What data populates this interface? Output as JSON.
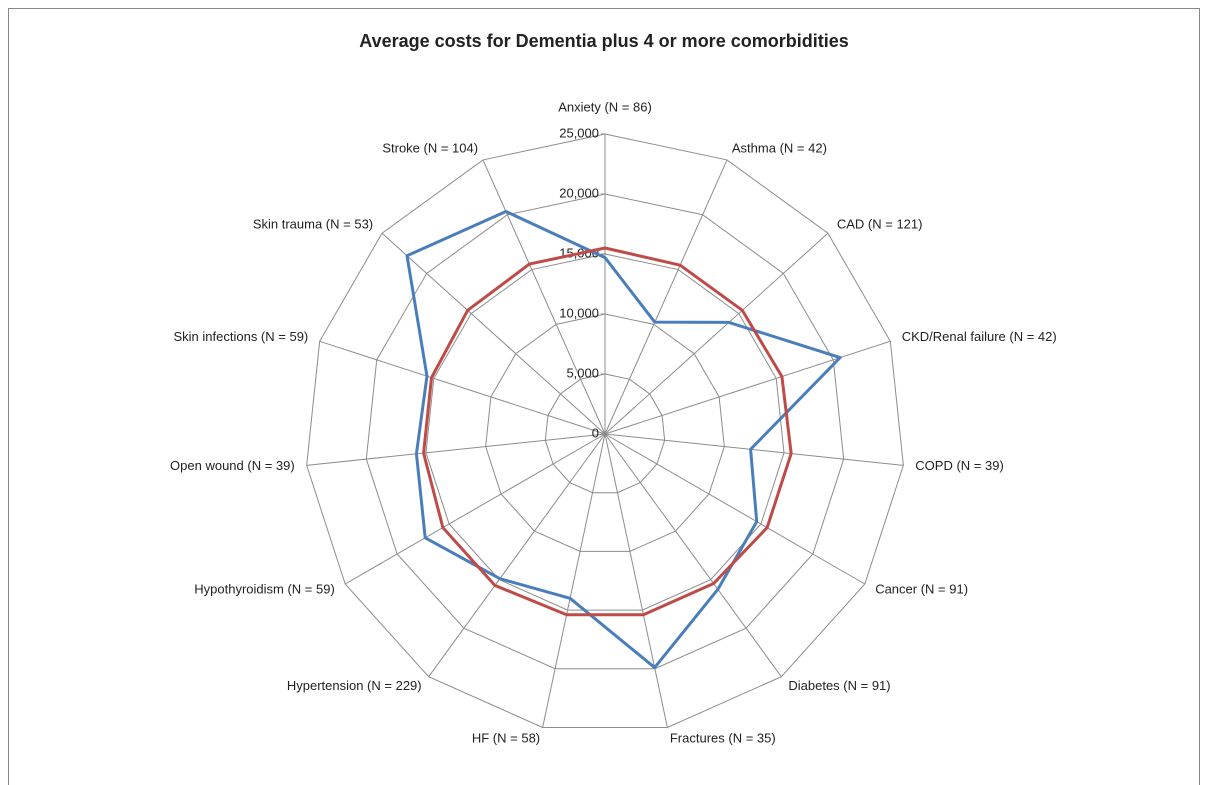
{
  "chart_data": {
    "type": "radar",
    "title": "Average costs for Dementia plus 4 or more comorbidities",
    "categories": [
      "Anxiety (N = 86)",
      "Asthma (N = 42)",
      "CAD (N = 121)",
      "CKD/Renal failure (N = 42)",
      "COPD (N = 39)",
      "Cancer (N = 91)",
      "Diabetes (N = 91)",
      "Fractures (N = 35)",
      "HF (N = 58)",
      "Hypertension (N = 229)",
      "Hypothyroidism (N = 59)",
      "Open wound (N = 39)",
      "Skin infections (N = 59)",
      "Skin trauma (N = 53)",
      "Stroke (N = 104)"
    ],
    "series": [
      {
        "color": "#4a7ebb",
        "values": [
          14700,
          10200,
          13900,
          20600,
          12200,
          14600,
          16000,
          19900,
          14000,
          14900,
          17300,
          15800,
          15600,
          22200,
          20300
        ]
      },
      {
        "color": "#be4b48",
        "values": [
          15500,
          15400,
          15400,
          15500,
          15600,
          15600,
          15400,
          15400,
          15400,
          15600,
          15600,
          15200,
          15200,
          15400,
          15500
        ]
      }
    ],
    "ylim": [
      0,
      25000
    ],
    "yticks": [
      0,
      {
        "value": 5000,
        "label": "5,000"
      },
      {
        "value": 10000,
        "label": "10,000"
      },
      {
        "value": 15000,
        "label": "15,000"
      },
      {
        "value": 20000,
        "label": "20,000"
      },
      {
        "value": 25000,
        "label": "25,000"
      }
    ],
    "grid": true
  }
}
